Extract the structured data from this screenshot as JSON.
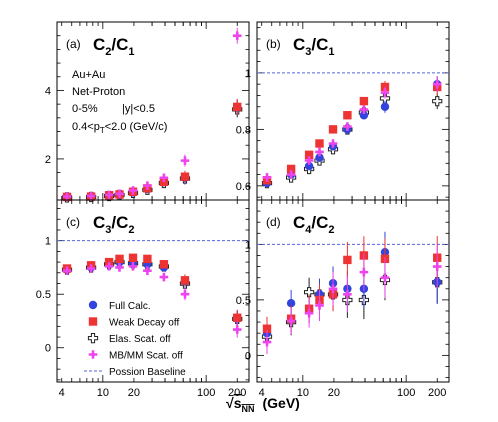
{
  "figure": {
    "xlabel_radical": "√",
    "xlabel_var": "s",
    "xlabel_sub": "NN",
    "xlabel_unit": "(GeV)",
    "colors": {
      "full": "#3344dd",
      "weak": "#ee3333",
      "elas": "#222222",
      "mbmm": "#ee44ee",
      "baseline": "#5566dd"
    },
    "legend": [
      {
        "key": "full",
        "marker": "circle",
        "label": "Full Calc."
      },
      {
        "key": "weak",
        "marker": "square",
        "label": "Weak Decay off"
      },
      {
        "key": "elas",
        "marker": "open-cross",
        "label": "Elas. Scat. off"
      },
      {
        "key": "mbmm",
        "marker": "plus",
        "label": "MB/MM Scat. off"
      },
      {
        "key": "baseline",
        "marker": "dashed-line",
        "label": "Possion Baseline"
      }
    ],
    "info_text": {
      "system": "Au+Au",
      "particle": "Net-Proton",
      "centrality": "0-5%",
      "rapidity": "|y|<0.5",
      "pt_prefix": "0.4<p",
      "pt_sub": "T",
      "pt_suffix": "<2.0 (GeV/c)"
    }
  },
  "chart_data": [
    {
      "type": "scatter",
      "panel_tag": "(a)",
      "title_main": "C",
      "title_sub1": "2",
      "title_mid": "/C",
      "title_sub2": "1",
      "xscale": "log",
      "xlim": [
        3.6,
        260
      ],
      "ylim": [
        0.8,
        6.0
      ],
      "yticks": [
        2,
        4
      ],
      "xticks": [
        4,
        10,
        20,
        100,
        200
      ],
      "x": [
        4.5,
        7.7,
        11.5,
        14.5,
        19.6,
        27,
        39,
        62.4,
        200
      ],
      "series": [
        {
          "key": "full",
          "values": [
            0.89,
            0.9,
            0.93,
            0.95,
            1.02,
            1.12,
            1.32,
            1.45,
            3.5
          ]
        },
        {
          "key": "weak",
          "values": [
            0.89,
            0.9,
            0.94,
            0.96,
            1.04,
            1.14,
            1.33,
            1.48,
            3.52
          ]
        },
        {
          "key": "elas",
          "values": [
            0.88,
            0.89,
            0.92,
            0.95,
            1.01,
            1.1,
            1.3,
            1.43,
            3.45
          ]
        },
        {
          "key": "mbmm",
          "values": [
            0.9,
            0.92,
            0.95,
            0.98,
            1.08,
            1.22,
            1.45,
            1.95,
            5.6
          ]
        }
      ],
      "baseline": null
    },
    {
      "type": "scatter",
      "panel_tag": "(b)",
      "title_main": "C",
      "title_sub1": "3",
      "title_mid": "/C",
      "title_sub2": "1",
      "xscale": "log",
      "xlim": [
        3.6,
        260
      ],
      "ylim": [
        0.55,
        1.18
      ],
      "yticks": [
        0.6,
        0.8,
        1
      ],
      "xticks": [
        4,
        10,
        20,
        100,
        200
      ],
      "x": [
        4.5,
        7.7,
        11.5,
        14.5,
        19.6,
        27,
        39,
        62.4,
        200
      ],
      "series": [
        {
          "key": "full",
          "values": [
            0.61,
            0.64,
            0.67,
            0.7,
            0.74,
            0.8,
            0.85,
            0.88,
            0.96
          ]
        },
        {
          "key": "weak",
          "values": [
            0.62,
            0.66,
            0.71,
            0.75,
            0.8,
            0.85,
            0.9,
            0.95,
            0.95
          ]
        },
        {
          "key": "elas",
          "values": [
            0.61,
            0.63,
            0.66,
            0.69,
            0.73,
            0.8,
            0.86,
            0.91,
            0.9
          ]
        },
        {
          "key": "mbmm",
          "values": [
            0.63,
            0.64,
            0.69,
            0.72,
            0.75,
            0.81,
            0.87,
            0.93,
            0.96
          ]
        }
      ],
      "baseline": 1
    },
    {
      "type": "scatter",
      "panel_tag": "(c)",
      "title_main": "C",
      "title_sub1": "3",
      "title_mid": "/C",
      "title_sub2": "2",
      "xscale": "log",
      "xlim": [
        3.6,
        260
      ],
      "ylim": [
        -0.32,
        1.38
      ],
      "yticks": [
        0,
        0.5,
        1
      ],
      "xticks": [
        4,
        10,
        20,
        100,
        200
      ],
      "x": [
        4.5,
        7.7,
        11.5,
        14.5,
        19.6,
        27,
        39,
        62.4,
        200
      ],
      "series": [
        {
          "key": "full",
          "values": [
            0.73,
            0.75,
            0.78,
            0.8,
            0.79,
            0.78,
            0.75,
            0.62,
            0.27
          ]
        },
        {
          "key": "weak",
          "values": [
            0.74,
            0.77,
            0.8,
            0.83,
            0.84,
            0.83,
            0.78,
            0.63,
            0.28
          ]
        },
        {
          "key": "elas",
          "values": [
            0.73,
            0.75,
            0.78,
            0.8,
            0.79,
            0.78,
            0.76,
            0.6,
            0.27
          ]
        },
        {
          "key": "mbmm",
          "values": [
            0.72,
            0.74,
            0.76,
            0.75,
            0.76,
            0.72,
            0.66,
            0.5,
            0.17
          ]
        }
      ],
      "baseline": 1
    },
    {
      "type": "scatter",
      "panel_tag": "(d)",
      "title_main": "C",
      "title_sub1": "4",
      "title_mid": "/C",
      "title_sub2": "2",
      "xscale": "log",
      "xlim": [
        3.6,
        260
      ],
      "ylim": [
        -0.24,
        1.4
      ],
      "yticks": [
        0,
        0.5,
        1
      ],
      "xticks": [
        4,
        10,
        20,
        100,
        200
      ],
      "x": [
        4.5,
        7.7,
        11.5,
        14.5,
        19.6,
        27,
        39,
        62.4,
        200
      ],
      "series": [
        {
          "key": "full",
          "values": [
            0.2,
            0.47,
            0.42,
            0.55,
            0.65,
            0.6,
            0.6,
            0.93,
            0.66
          ]
        },
        {
          "key": "weak",
          "values": [
            0.24,
            0.33,
            0.42,
            0.5,
            0.55,
            0.86,
            0.9,
            0.87,
            0.88
          ]
        },
        {
          "key": "elas",
          "values": [
            0.17,
            0.3,
            0.57,
            0.55,
            0.55,
            0.5,
            0.5,
            0.68,
            0.66
          ]
        },
        {
          "key": "mbmm",
          "values": [
            0.12,
            0.31,
            0.38,
            0.45,
            0.6,
            0.55,
            0.75,
            0.7,
            0.8
          ]
        }
      ],
      "baseline": 1
    }
  ]
}
